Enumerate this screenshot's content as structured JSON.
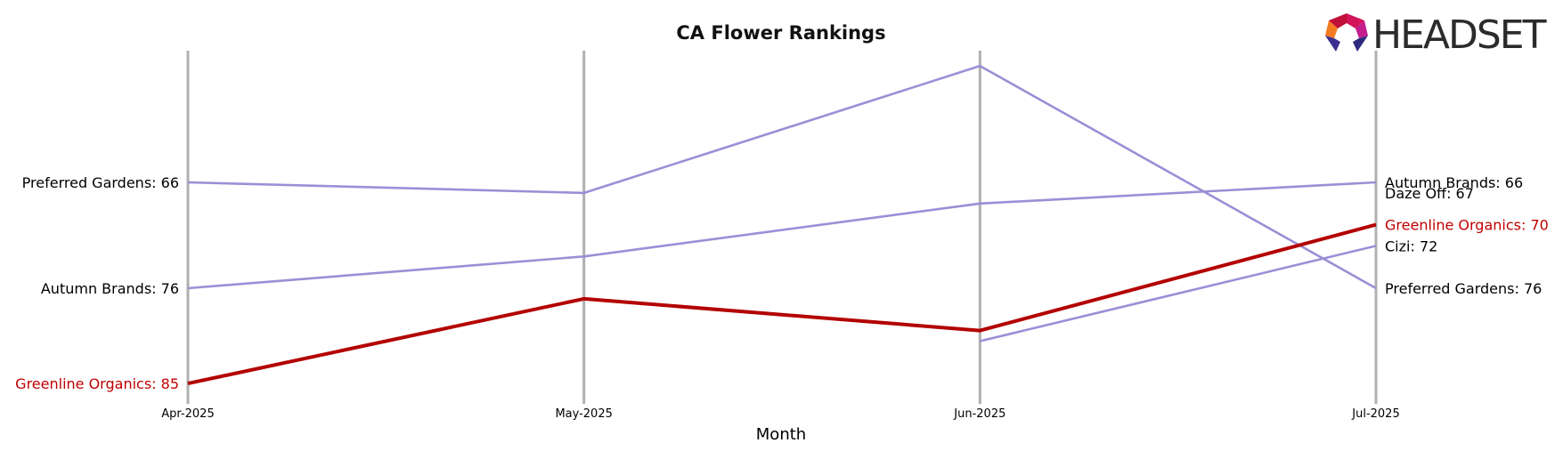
{
  "brand": {
    "logo_text": "HEADSET"
  },
  "chart_data": {
    "type": "line",
    "title": "CA Flower Rankings",
    "xlabel": "Month",
    "ylabel": "",
    "categories": [
      "Apr-2025",
      "May-2025",
      "Jun-2025",
      "Jul-2025"
    ],
    "y_inverted": true,
    "ylim": [
      57,
      87
    ],
    "grid": "vertical lines at each month",
    "series": [
      {
        "name": "Preferred Gardens",
        "values": [
          66,
          67,
          55,
          76
        ],
        "color": "#9b8fd6",
        "highlight": false
      },
      {
        "name": "Autumn Brands",
        "values": [
          76,
          73,
          68,
          66
        ],
        "color": "#9b8fd6",
        "highlight": false
      },
      {
        "name": "Greenline Organics",
        "values": [
          85,
          77,
          80,
          70
        ],
        "color": "#b30000",
        "highlight": true
      },
      {
        "name": "Cizi",
        "values": [
          null,
          null,
          81,
          72
        ],
        "color": "#9b8fd6",
        "highlight": false
      },
      {
        "name": "Daze Off",
        "values": [
          null,
          null,
          null,
          67
        ],
        "color": "#9b8fd6",
        "highlight": false
      }
    ],
    "left_labels": [
      {
        "text": "Preferred Gardens: 66",
        "value": 66,
        "color": "#000000"
      },
      {
        "text": "Autumn Brands: 76",
        "value": 76,
        "color": "#000000"
      },
      {
        "text": "Greenline Organics: 85",
        "value": 85,
        "color": "#c00000"
      }
    ],
    "right_labels": [
      {
        "text": "Autumn Brands: 66",
        "value": 66,
        "color": "#000000",
        "offset": 0
      },
      {
        "text": "Daze Off: 67",
        "value": 67,
        "color": "#000000",
        "offset": 0
      },
      {
        "text": "Greenline Organics: 70",
        "value": 70,
        "color": "#c00000",
        "offset": 0
      },
      {
        "text": "Cizi: 72",
        "value": 72,
        "color": "#000000",
        "offset": 0
      },
      {
        "text": "Preferred Gardens: 76",
        "value": 76,
        "color": "#000000",
        "offset": 0
      }
    ]
  }
}
